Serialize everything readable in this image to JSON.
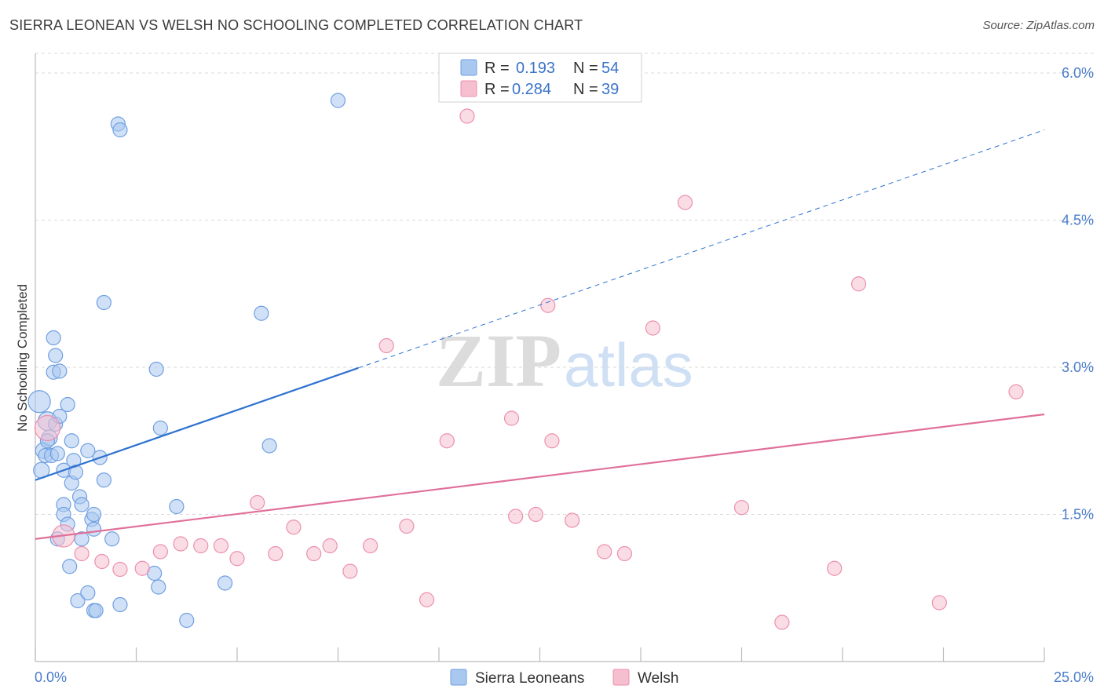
{
  "title": "SIERRA LEONEAN VS WELSH NO SCHOOLING COMPLETED CORRELATION CHART",
  "source": "Source: ZipAtlas.com",
  "watermark": {
    "zip": "ZIP",
    "atlas": "atlas"
  },
  "colors": {
    "blue_fill": "#a9c8f0",
    "blue_stroke": "#6f9fe0",
    "blue_line": "#2f72d0",
    "pink_fill": "#f6bfd0",
    "pink_stroke": "#ec8fae",
    "pink_line": "#e0709a",
    "grid": "#d9d9d9",
    "axis": "#bbbbbb",
    "label_blue": "#4a7cc9"
  },
  "chart_data": {
    "type": "scatter",
    "title": "SIERRA LEONEAN VS WELSH NO SCHOOLING COMPLETED CORRELATION CHART",
    "xlabel": "",
    "ylabel": "No Schooling Completed",
    "xlim": [
      0,
      25
    ],
    "ylim": [
      0,
      6.2
    ],
    "x_ticks": [
      0,
      2.5,
      5,
      7.5,
      10,
      12.5,
      15,
      17.5,
      20,
      22.5,
      25
    ],
    "x_tick_labels": {
      "min": "0.0%",
      "max": "25.0%"
    },
    "y_ticks": [
      1.5,
      3.0,
      4.5,
      6.0
    ],
    "y_tick_labels": [
      "1.5%",
      "3.0%",
      "4.5%",
      "6.0%"
    ],
    "grid": true,
    "legend_position": "top-center",
    "legend": [
      {
        "name": "Sierra Leoneans",
        "r_label": "R =",
        "r": "0.193",
        "n_label": "N =",
        "n": "54"
      },
      {
        "name": "Welsh",
        "r_label": "R =",
        "r": "0.284",
        "n_label": "N =",
        "n": "39"
      }
    ],
    "series": [
      {
        "name": "Sierra Leoneans",
        "color": "#a9c8f0",
        "points": [
          [
            0.1,
            2.65,
            14
          ],
          [
            0.2,
            2.15,
            10
          ],
          [
            0.15,
            1.95,
            10
          ],
          [
            0.3,
            2.45,
            12
          ],
          [
            0.35,
            2.28,
            10
          ],
          [
            0.25,
            2.1,
            9
          ],
          [
            0.4,
            2.1,
            9
          ],
          [
            0.5,
            2.42,
            9
          ],
          [
            0.55,
            2.12,
            9
          ],
          [
            0.45,
            3.3,
            9
          ],
          [
            0.5,
            3.12,
            9
          ],
          [
            0.45,
            2.95,
            9
          ],
          [
            0.6,
            2.96,
            9
          ],
          [
            0.6,
            2.5,
            9
          ],
          [
            0.8,
            2.62,
            9
          ],
          [
            0.9,
            2.25,
            9
          ],
          [
            0.9,
            1.82,
            9
          ],
          [
            0.7,
            1.95,
            9
          ],
          [
            0.95,
            2.05,
            9
          ],
          [
            1.0,
            1.93,
            9
          ],
          [
            0.7,
            1.6,
            9
          ],
          [
            0.7,
            1.5,
            9
          ],
          [
            0.8,
            1.4,
            9
          ],
          [
            1.1,
            1.68,
            9
          ],
          [
            1.15,
            1.6,
            9
          ],
          [
            1.3,
            2.15,
            9
          ],
          [
            1.6,
            2.08,
            9
          ],
          [
            1.7,
            1.85,
            9
          ],
          [
            1.4,
            1.45,
            9
          ],
          [
            1.45,
            1.35,
            9
          ],
          [
            1.45,
            1.5,
            9
          ],
          [
            0.55,
            1.25,
            9
          ],
          [
            1.15,
            1.25,
            9
          ],
          [
            1.9,
            1.25,
            9
          ],
          [
            0.85,
            0.97,
            9
          ],
          [
            1.05,
            0.62,
            9
          ],
          [
            1.3,
            0.7,
            9
          ],
          [
            1.45,
            0.52,
            9
          ],
          [
            1.5,
            0.52,
            9
          ],
          [
            2.1,
            0.58,
            9
          ],
          [
            1.7,
            3.66,
            9
          ],
          [
            2.05,
            5.48,
            9
          ],
          [
            2.1,
            5.42,
            9
          ],
          [
            3.0,
            2.98,
            9
          ],
          [
            3.1,
            2.38,
            9
          ],
          [
            2.95,
            0.9,
            9
          ],
          [
            3.05,
            0.76,
            9
          ],
          [
            3.5,
            1.58,
            9
          ],
          [
            3.75,
            0.42,
            9
          ],
          [
            4.7,
            0.8,
            9
          ],
          [
            5.6,
            3.55,
            9
          ],
          [
            5.8,
            2.2,
            9
          ],
          [
            7.5,
            5.72,
            9
          ],
          [
            0.3,
            2.25,
            9
          ]
        ]
      },
      {
        "name": "Welsh",
        "color": "#f6bfd0",
        "points": [
          [
            0.3,
            2.38,
            16
          ],
          [
            0.7,
            1.28,
            14
          ],
          [
            1.15,
            1.1,
            9
          ],
          [
            1.65,
            1.02,
            9
          ],
          [
            2.1,
            0.94,
            9
          ],
          [
            2.65,
            0.95,
            9
          ],
          [
            3.1,
            1.12,
            9
          ],
          [
            3.6,
            1.2,
            9
          ],
          [
            4.1,
            1.18,
            9
          ],
          [
            4.6,
            1.18,
            9
          ],
          [
            5.0,
            1.05,
            9
          ],
          [
            5.5,
            1.62,
            9
          ],
          [
            5.95,
            1.1,
            9
          ],
          [
            6.4,
            1.37,
            9
          ],
          [
            6.9,
            1.1,
            9
          ],
          [
            7.3,
            1.18,
            9
          ],
          [
            7.8,
            0.92,
            9
          ],
          [
            8.3,
            1.18,
            9
          ],
          [
            8.7,
            3.22,
            9
          ],
          [
            9.2,
            1.38,
            9
          ],
          [
            9.7,
            0.63,
            9
          ],
          [
            10.2,
            2.25,
            9
          ],
          [
            10.7,
            5.56,
            9
          ],
          [
            11.8,
            2.48,
            9
          ],
          [
            11.9,
            1.48,
            9
          ],
          [
            12.4,
            1.5,
            9
          ],
          [
            12.8,
            2.25,
            9
          ],
          [
            12.7,
            3.63,
            9
          ],
          [
            13.3,
            1.44,
            9
          ],
          [
            14.1,
            1.12,
            9
          ],
          [
            14.6,
            1.1,
            9
          ],
          [
            15.3,
            3.4,
            9
          ],
          [
            16.1,
            4.68,
            9
          ],
          [
            17.5,
            1.57,
            9
          ],
          [
            18.5,
            0.4,
            9
          ],
          [
            19.8,
            0.95,
            9
          ],
          [
            20.4,
            3.85,
            9
          ],
          [
            22.4,
            0.6,
            9
          ],
          [
            24.3,
            2.75,
            9
          ]
        ]
      }
    ],
    "trendlines": [
      {
        "series": "Sierra Leoneans",
        "x0": 0,
        "y0": 1.85,
        "x_solid_end": 8.0,
        "x1": 25,
        "y1": 5.42
      },
      {
        "series": "Welsh",
        "x0": 0,
        "y0": 1.25,
        "x1": 25,
        "y1": 2.52
      }
    ]
  }
}
